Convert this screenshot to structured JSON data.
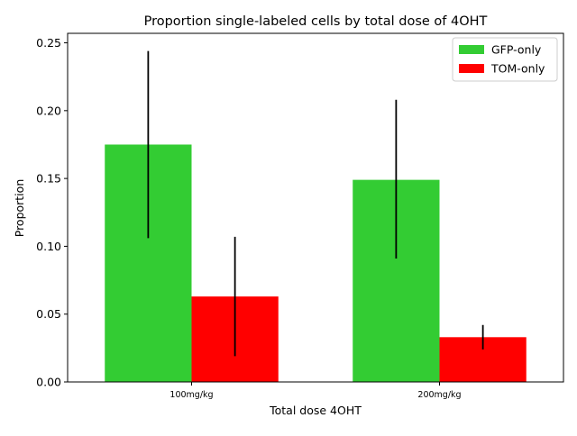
{
  "chart_data": {
    "type": "bar",
    "title": "Proportion single-labeled cells by total dose of 4OHT",
    "xlabel": "Total dose 4OHT",
    "ylabel": "Proportion",
    "categories": [
      "100mg/kg",
      "200mg/kg"
    ],
    "ylim": [
      0,
      0.257
    ],
    "yticks": [
      "0.00",
      "0.05",
      "0.10",
      "0.15",
      "0.20",
      "0.25"
    ],
    "grid": false,
    "legend_position": "top-right",
    "series": [
      {
        "name": "GFP-only",
        "color": "#33cc33",
        "values": [
          0.175,
          0.149
        ],
        "error_low": [
          0.106,
          0.091
        ],
        "error_high": [
          0.244,
          0.208
        ]
      },
      {
        "name": "TOM-only",
        "color": "#ff0000",
        "values": [
          0.063,
          0.033
        ],
        "error_low": [
          0.019,
          0.024
        ],
        "error_high": [
          0.107,
          0.042
        ]
      }
    ]
  }
}
